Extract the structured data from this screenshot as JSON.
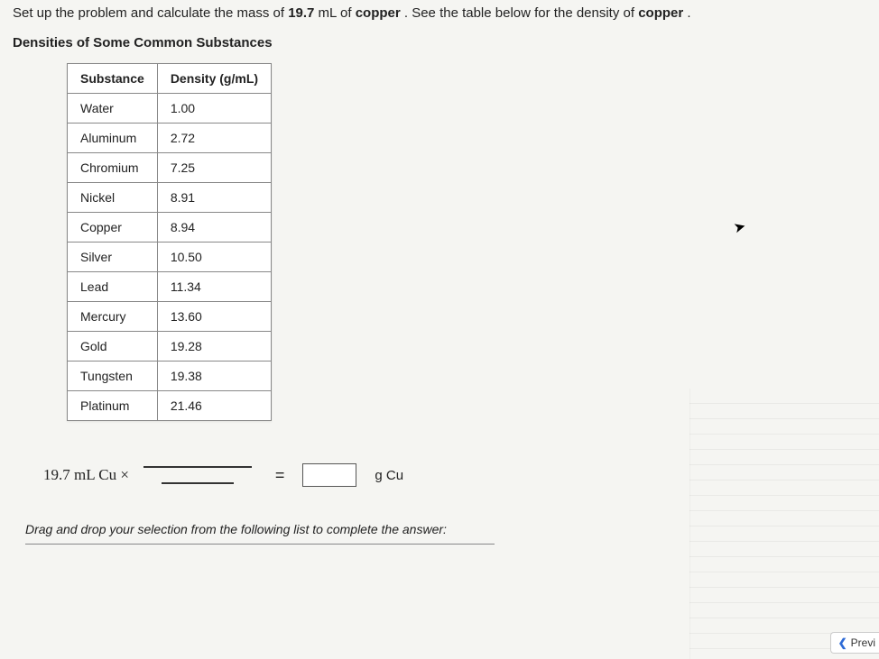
{
  "problem": {
    "prefix": "Set up the problem and calculate the mass of ",
    "bold1": "19.7",
    "mid1": " mL of ",
    "bold2": "copper",
    "mid2": " . See the table below for the density of ",
    "bold3": "copper",
    "suffix": " ."
  },
  "subheading": "Densities of Some Common Substances",
  "table": {
    "headers": {
      "col1": "Substance",
      "col2": "Density (g/mL)"
    },
    "rows": [
      {
        "substance": "Water",
        "density": "1.00"
      },
      {
        "substance": "Aluminum",
        "density": "2.72"
      },
      {
        "substance": "Chromium",
        "density": "7.25"
      },
      {
        "substance": "Nickel",
        "density": "8.91"
      },
      {
        "substance": "Copper",
        "density": "8.94"
      },
      {
        "substance": "Silver",
        "density": "10.50"
      },
      {
        "substance": "Lead",
        "density": "11.34"
      },
      {
        "substance": "Mercury",
        "density": "13.60"
      },
      {
        "substance": "Gold",
        "density": "19.28"
      },
      {
        "substance": "Tungsten",
        "density": "19.38"
      },
      {
        "substance": "Platinum",
        "density": "21.46"
      }
    ]
  },
  "equation": {
    "left": "19.7 mL Cu ×",
    "equals": "=",
    "right_unit": "g Cu"
  },
  "drag_instruction": "Drag and drop your selection from the following list to complete the answer:",
  "nav": {
    "prev": "Previ"
  },
  "colors": {
    "page_bg": "#f5f5f2",
    "text": "#222222",
    "border": "#888888",
    "accent": "#2e6bd6"
  }
}
